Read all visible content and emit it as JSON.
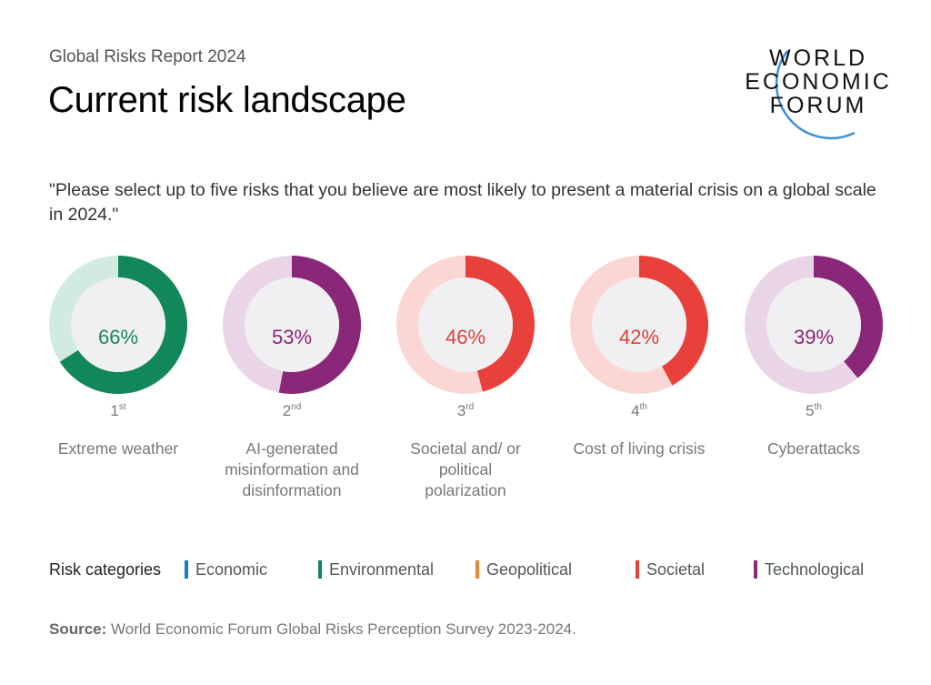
{
  "header": {
    "subtitle": "Global Risks Report 2024",
    "title": "Current risk landscape",
    "logo_text": "WORLD ECONOMIC FORUM"
  },
  "question": "\"Please select up to five risks that you believe are most likely to present a material crisis on a global scale in 2024.\"",
  "chart_data": {
    "type": "pie",
    "variant": "donut",
    "items": [
      {
        "rank": "1",
        "rank_suffix": "st",
        "label": "Extreme weather",
        "value": 66,
        "value_label": "66%",
        "category": "Environmental"
      },
      {
        "rank": "2",
        "rank_suffix": "nd",
        "label": "AI-generated misinformation and disinformation",
        "value": 53,
        "value_label": "53%",
        "category": "Technological"
      },
      {
        "rank": "3",
        "rank_suffix": "rd",
        "label": "Societal and/ or political polarization",
        "value": 46,
        "value_label": "46%",
        "category": "Societal"
      },
      {
        "rank": "4",
        "rank_suffix": "th",
        "label": "Cost of living crisis",
        "value": 42,
        "value_label": "42%",
        "category": "Societal"
      },
      {
        "rank": "5",
        "rank_suffix": "th",
        "label": "Cyberattacks",
        "value": 39,
        "value_label": "39%",
        "category": "Technological"
      }
    ],
    "legend": {
      "title": "Risk categories",
      "entries": [
        {
          "name": "Economic",
          "color": "#1a7dbf"
        },
        {
          "name": "Environmental",
          "color": "#12875a"
        },
        {
          "name": "Geopolitical",
          "color": "#e8873a"
        },
        {
          "name": "Societal",
          "color": "#e8403a"
        },
        {
          "name": "Technological",
          "color": "#8b2779"
        }
      ]
    },
    "category_colors": {
      "Environmental": {
        "main": "#12875a",
        "light": "#d2ebe1",
        "text": "#16885a"
      },
      "Technological": {
        "main": "#8b2779",
        "light": "#ead5e6",
        "text": "#8b2779"
      },
      "Societal": {
        "main": "#e8403a",
        "light": "#fad6d5",
        "text": "#e0403a"
      }
    }
  },
  "source": {
    "label": "Source:",
    "text": " World Economic Forum Global Risks Perception Survey 2023-2024."
  }
}
